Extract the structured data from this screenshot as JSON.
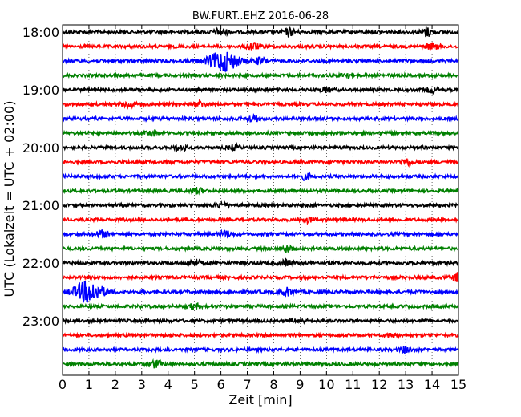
{
  "chart_data": {
    "type": "line",
    "title": "BW.FURT..EHZ 2016-06-28",
    "xlabel": "Zeit  [min]",
    "ylabel": "UTC (Lokalzeit = UTC + 02:00)",
    "xlim": [
      0,
      15
    ],
    "xticks": [
      "0",
      "1",
      "2",
      "3",
      "4",
      "5",
      "6",
      "7",
      "8",
      "9",
      "10",
      "11",
      "12",
      "13",
      "14",
      "15"
    ],
    "yticks": [
      "18:00",
      "19:00",
      "20:00",
      "21:00",
      "22:00",
      "23:00"
    ],
    "grid": "vertical dotted",
    "trace_colors": [
      "#000000",
      "#ff0000",
      "#0000ff",
      "#008000"
    ],
    "traces": [
      {
        "start": "18:00",
        "events": [
          {
            "t": 6.0,
            "amp": 0.35
          },
          {
            "t": 8.6,
            "amp": 0.3
          },
          {
            "t": 13.8,
            "amp": 0.4
          }
        ]
      },
      {
        "start": "18:15",
        "events": [
          {
            "t": 7.2,
            "amp": 0.35
          },
          {
            "t": 14.0,
            "amp": 0.25
          }
        ]
      },
      {
        "start": "18:30",
        "events": [
          {
            "t": 6.1,
            "amp": 0.95
          },
          {
            "t": 7.5,
            "amp": 0.3
          }
        ]
      },
      {
        "start": "18:45",
        "events": [
          {
            "t": 10.8,
            "amp": 0.2
          }
        ]
      },
      {
        "start": "19:00",
        "events": [
          {
            "t": 10.0,
            "amp": 0.2
          },
          {
            "t": 14.0,
            "amp": 0.2
          }
        ]
      },
      {
        "start": "19:15",
        "events": [
          {
            "t": 2.5,
            "amp": 0.3
          },
          {
            "t": 5.2,
            "amp": 0.25
          }
        ]
      },
      {
        "start": "19:30",
        "events": [
          {
            "t": 7.2,
            "amp": 0.3
          }
        ]
      },
      {
        "start": "19:45",
        "events": [
          {
            "t": 3.4,
            "amp": 0.25
          }
        ]
      },
      {
        "start": "20:00",
        "events": [
          {
            "t": 4.5,
            "amp": 0.25
          },
          {
            "t": 6.5,
            "amp": 0.2
          }
        ]
      },
      {
        "start": "20:15",
        "events": [
          {
            "t": 13.0,
            "amp": 0.3
          }
        ]
      },
      {
        "start": "20:30",
        "events": [
          {
            "t": 9.2,
            "amp": 0.25
          }
        ]
      },
      {
        "start": "20:45",
        "events": [
          {
            "t": 5.1,
            "amp": 0.25
          }
        ]
      },
      {
        "start": "21:00",
        "events": [
          {
            "t": 6.0,
            "amp": 0.2
          }
        ]
      },
      {
        "start": "21:15",
        "events": [
          {
            "t": 9.3,
            "amp": 0.2
          }
        ]
      },
      {
        "start": "21:30",
        "events": [
          {
            "t": 1.5,
            "amp": 0.3
          },
          {
            "t": 6.2,
            "amp": 0.3
          }
        ]
      },
      {
        "start": "21:45",
        "events": [
          {
            "t": 8.5,
            "amp": 0.25
          }
        ]
      },
      {
        "start": "22:00",
        "events": [
          {
            "t": 5.0,
            "amp": 0.3
          },
          {
            "t": 8.5,
            "amp": 0.25
          }
        ]
      },
      {
        "start": "22:15",
        "events": [
          {
            "t": 15.0,
            "amp": 0.4
          }
        ]
      },
      {
        "start": "22:30",
        "events": [
          {
            "t": 1.0,
            "amp": 0.95
          },
          {
            "t": 8.5,
            "amp": 0.35
          }
        ]
      },
      {
        "start": "22:45",
        "events": [
          {
            "t": 5.0,
            "amp": 0.2
          }
        ]
      },
      {
        "start": "23:00",
        "events": [
          {
            "t": 9.0,
            "amp": 0.15
          }
        ]
      },
      {
        "start": "23:15",
        "events": [
          {
            "t": 12.5,
            "amp": 0.2
          }
        ]
      },
      {
        "start": "23:30",
        "events": [
          {
            "t": 13.0,
            "amp": 0.25
          }
        ]
      },
      {
        "start": "23:45",
        "events": [
          {
            "t": 3.5,
            "amp": 0.3
          }
        ]
      }
    ]
  }
}
